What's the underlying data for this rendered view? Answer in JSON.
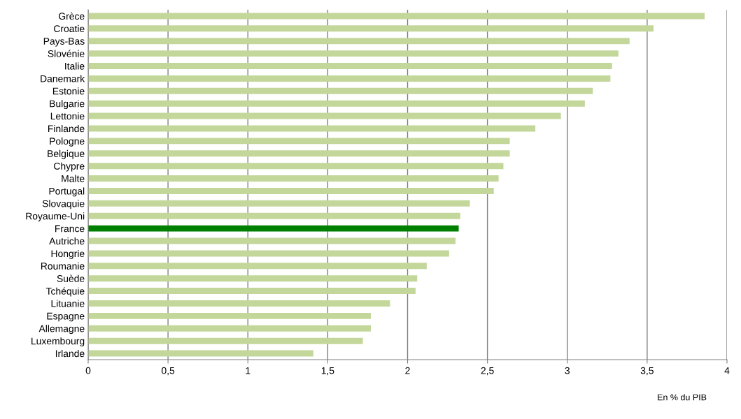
{
  "chart_data": {
    "type": "bar",
    "orientation": "horizontal",
    "categories": [
      "Grèce",
      "Croatie",
      "Pays-Bas",
      "Slovénie",
      "Italie",
      "Danemark",
      "Estonie",
      "Bulgarie",
      "Lettonie",
      "Finlande",
      "Pologne",
      "Belgique",
      "Chypre",
      "Malte",
      "Portugal",
      "Slovaquie",
      "Royaume-Uni",
      "France",
      "Autriche",
      "Hongrie",
      "Roumanie",
      "Suède",
      "Tchéquie",
      "Lituanie",
      "Espagne",
      "Allemagne",
      "Luxembourg",
      "Irlande"
    ],
    "values": [
      3.86,
      3.54,
      3.39,
      3.32,
      3.28,
      3.27,
      3.16,
      3.11,
      2.96,
      2.8,
      2.64,
      2.64,
      2.6,
      2.57,
      2.54,
      2.39,
      2.33,
      2.32,
      2.3,
      2.26,
      2.12,
      2.06,
      2.05,
      1.89,
      1.77,
      1.77,
      1.72,
      1.41
    ],
    "colors": [
      "#c4d79b",
      "#c4d79b",
      "#c4d79b",
      "#c4d79b",
      "#c4d79b",
      "#c4d79b",
      "#c4d79b",
      "#c4d79b",
      "#c4d79b",
      "#c4d79b",
      "#c4d79b",
      "#c4d79b",
      "#c4d79b",
      "#c4d79b",
      "#c4d79b",
      "#c4d79b",
      "#c4d79b",
      "#008000",
      "#c4d79b",
      "#c4d79b",
      "#c4d79b",
      "#c4d79b",
      "#c4d79b",
      "#c4d79b",
      "#c4d79b",
      "#c4d79b",
      "#c4d79b",
      "#c4d79b"
    ],
    "xlim": [
      0,
      4
    ],
    "xticks": [
      0,
      {
        "value": 0.5,
        "label": "0,5"
      },
      1,
      {
        "value": 1.5,
        "label": "1,5"
      },
      2,
      {
        "value": 2.5,
        "label": "2,5"
      },
      3,
      {
        "value": 3.5,
        "label": "3,5"
      },
      4
    ],
    "grid": "x",
    "annotations": [
      "En % du PIB"
    ]
  }
}
